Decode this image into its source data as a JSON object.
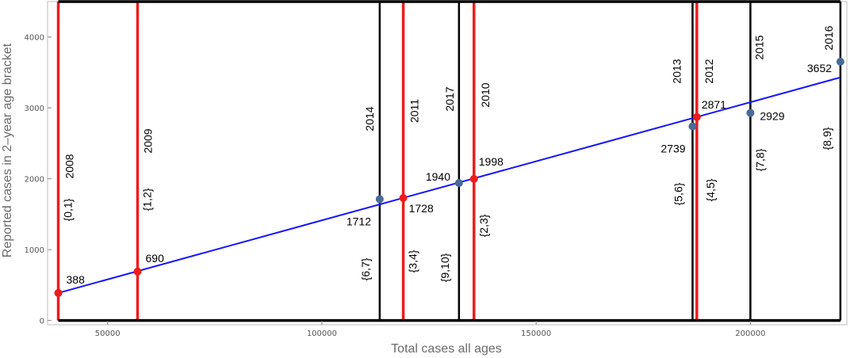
{
  "chart_data": {
    "type": "scatter",
    "xlabel": "Total cases all ages",
    "ylabel": "Reported cases in 2–year age bracket",
    "xlim": [
      36000,
      222500
    ],
    "ylim": [
      -60,
      4500
    ],
    "x_ticks": [
      {
        "v": 50000,
        "label": "50000"
      },
      {
        "v": 100000,
        "label": "100000"
      },
      {
        "v": 150000,
        "label": "150000"
      },
      {
        "v": 200000,
        "label": "200000"
      }
    ],
    "y_ticks": [
      {
        "v": 0,
        "label": "0"
      },
      {
        "v": 1000,
        "label": "1000"
      },
      {
        "v": 2000,
        "label": "2000"
      },
      {
        "v": 3000,
        "label": "3000"
      },
      {
        "v": 4000,
        "label": "4000"
      }
    ],
    "fit_line": {
      "x": [
        38500,
        221000
      ],
      "y": [
        388,
        3430
      ],
      "color": "#1414ff"
    },
    "vertical_lines": [
      {
        "x": 38500,
        "color": "#ee1c1c",
        "year": "2008",
        "bracket": "{0,1}"
      },
      {
        "x": 57000,
        "color": "#ee1c1c",
        "year": "2009",
        "bracket": "{1,2}"
      },
      {
        "x": 113500,
        "color": "#000000",
        "year": "2014",
        "bracket": "{6,7}"
      },
      {
        "x": 119000,
        "color": "#ee1c1c",
        "year": "2011",
        "bracket": "{3,4}"
      },
      {
        "x": 132000,
        "color": "#000000",
        "year": "2017",
        "bracket": "{9,10}"
      },
      {
        "x": 135500,
        "color": "#ee1c1c",
        "year": "2010",
        "bracket": "{2,3}"
      },
      {
        "x": 186500,
        "color": "#000000",
        "year": "2013",
        "bracket": "{5,6}"
      },
      {
        "x": 187500,
        "color": "#ee1c1c",
        "year": "2012",
        "bracket": "{4,5}"
      },
      {
        "x": 200000,
        "color": "#000000",
        "year": "2015",
        "bracket": "{7,8}"
      },
      {
        "x": 221000,
        "color": "#000000",
        "year": "2016",
        "bracket": "{8,9}"
      }
    ],
    "points": [
      {
        "x": 38500,
        "y": 388,
        "label": "388",
        "color": "#ee1c1c"
      },
      {
        "x": 57000,
        "y": 690,
        "label": "690",
        "color": "#ee1c1c"
      },
      {
        "x": 113500,
        "y": 1712,
        "label": "1712",
        "color": "#4a6a9a"
      },
      {
        "x": 119000,
        "y": 1728,
        "label": "1728",
        "color": "#ee1c1c"
      },
      {
        "x": 132000,
        "y": 1940,
        "label": "1940",
        "color": "#4a6a9a"
      },
      {
        "x": 135500,
        "y": 1998,
        "label": "1998",
        "color": "#ee1c1c"
      },
      {
        "x": 186500,
        "y": 2739,
        "label": "2739",
        "color": "#4a6a9a"
      },
      {
        "x": 187500,
        "y": 2871,
        "label": "2871",
        "color": "#ee1c1c"
      },
      {
        "x": 200000,
        "y": 2929,
        "label": "2929",
        "color": "#4a6a9a"
      },
      {
        "x": 221000,
        "y": 3652,
        "label": "3652",
        "color": "#4a6a9a"
      }
    ],
    "box_lines": [
      0,
      4500
    ],
    "grid": false
  }
}
